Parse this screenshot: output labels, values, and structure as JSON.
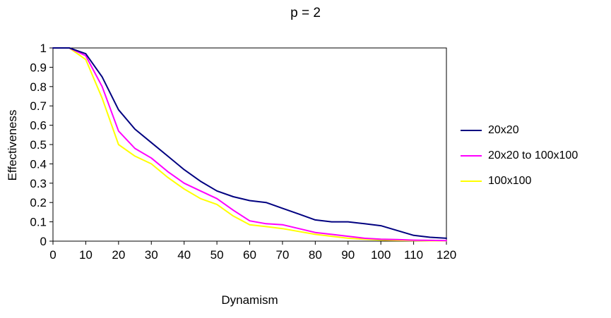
{
  "chart_data": {
    "type": "line",
    "title": "p = 2",
    "xlabel": "Dynamism",
    "ylabel": "Effectiveness",
    "xlim": [
      0,
      120
    ],
    "ylim": [
      0,
      1
    ],
    "grid": false,
    "legend_position": "right",
    "x_ticks": [
      0,
      10,
      20,
      30,
      40,
      50,
      60,
      70,
      80,
      90,
      100,
      110,
      120
    ],
    "x_tick_labels": [
      "0",
      "10",
      "20",
      "30",
      "40",
      "50",
      "60",
      "70",
      "80",
      "90",
      "100",
      "110",
      "120"
    ],
    "y_ticks": [
      0,
      0.1,
      0.2,
      0.3,
      0.4,
      0.5,
      0.6,
      0.7,
      0.8,
      0.9,
      1
    ],
    "y_tick_labels": [
      "0",
      "0.1",
      "0.2",
      "0.3",
      "0.4",
      "0.5",
      "0.6",
      "0.7",
      "0.8",
      "0.9",
      "1"
    ],
    "x": [
      0,
      5,
      10,
      15,
      20,
      25,
      30,
      35,
      40,
      45,
      50,
      55,
      60,
      65,
      70,
      75,
      80,
      85,
      90,
      95,
      100,
      105,
      110,
      115,
      120
    ],
    "series": [
      {
        "name": "20x20",
        "color": "#000080",
        "values": [
          1.0,
          1.0,
          0.97,
          0.85,
          0.68,
          0.58,
          0.51,
          0.44,
          0.37,
          0.31,
          0.26,
          0.23,
          0.21,
          0.2,
          0.17,
          0.14,
          0.11,
          0.1,
          0.1,
          0.09,
          0.08,
          0.055,
          0.03,
          0.02,
          0.015
        ]
      },
      {
        "name": "20x20 to 100x100",
        "color": "#FF00FF",
        "values": [
          1.0,
          1.0,
          0.96,
          0.8,
          0.57,
          0.48,
          0.43,
          0.36,
          0.3,
          0.26,
          0.22,
          0.16,
          0.105,
          0.09,
          0.085,
          0.065,
          0.045,
          0.035,
          0.025,
          0.015,
          0.01,
          0.008,
          0.005,
          0.004,
          0.003
        ]
      },
      {
        "name": "100x100",
        "color": "#FFFF00",
        "values": [
          1.0,
          1.0,
          0.94,
          0.74,
          0.5,
          0.44,
          0.4,
          0.33,
          0.27,
          0.22,
          0.19,
          0.13,
          0.085,
          0.075,
          0.065,
          0.05,
          0.035,
          0.025,
          0.015,
          0.01,
          0.006,
          0.004,
          0.003,
          0.002,
          0.002
        ]
      }
    ]
  }
}
